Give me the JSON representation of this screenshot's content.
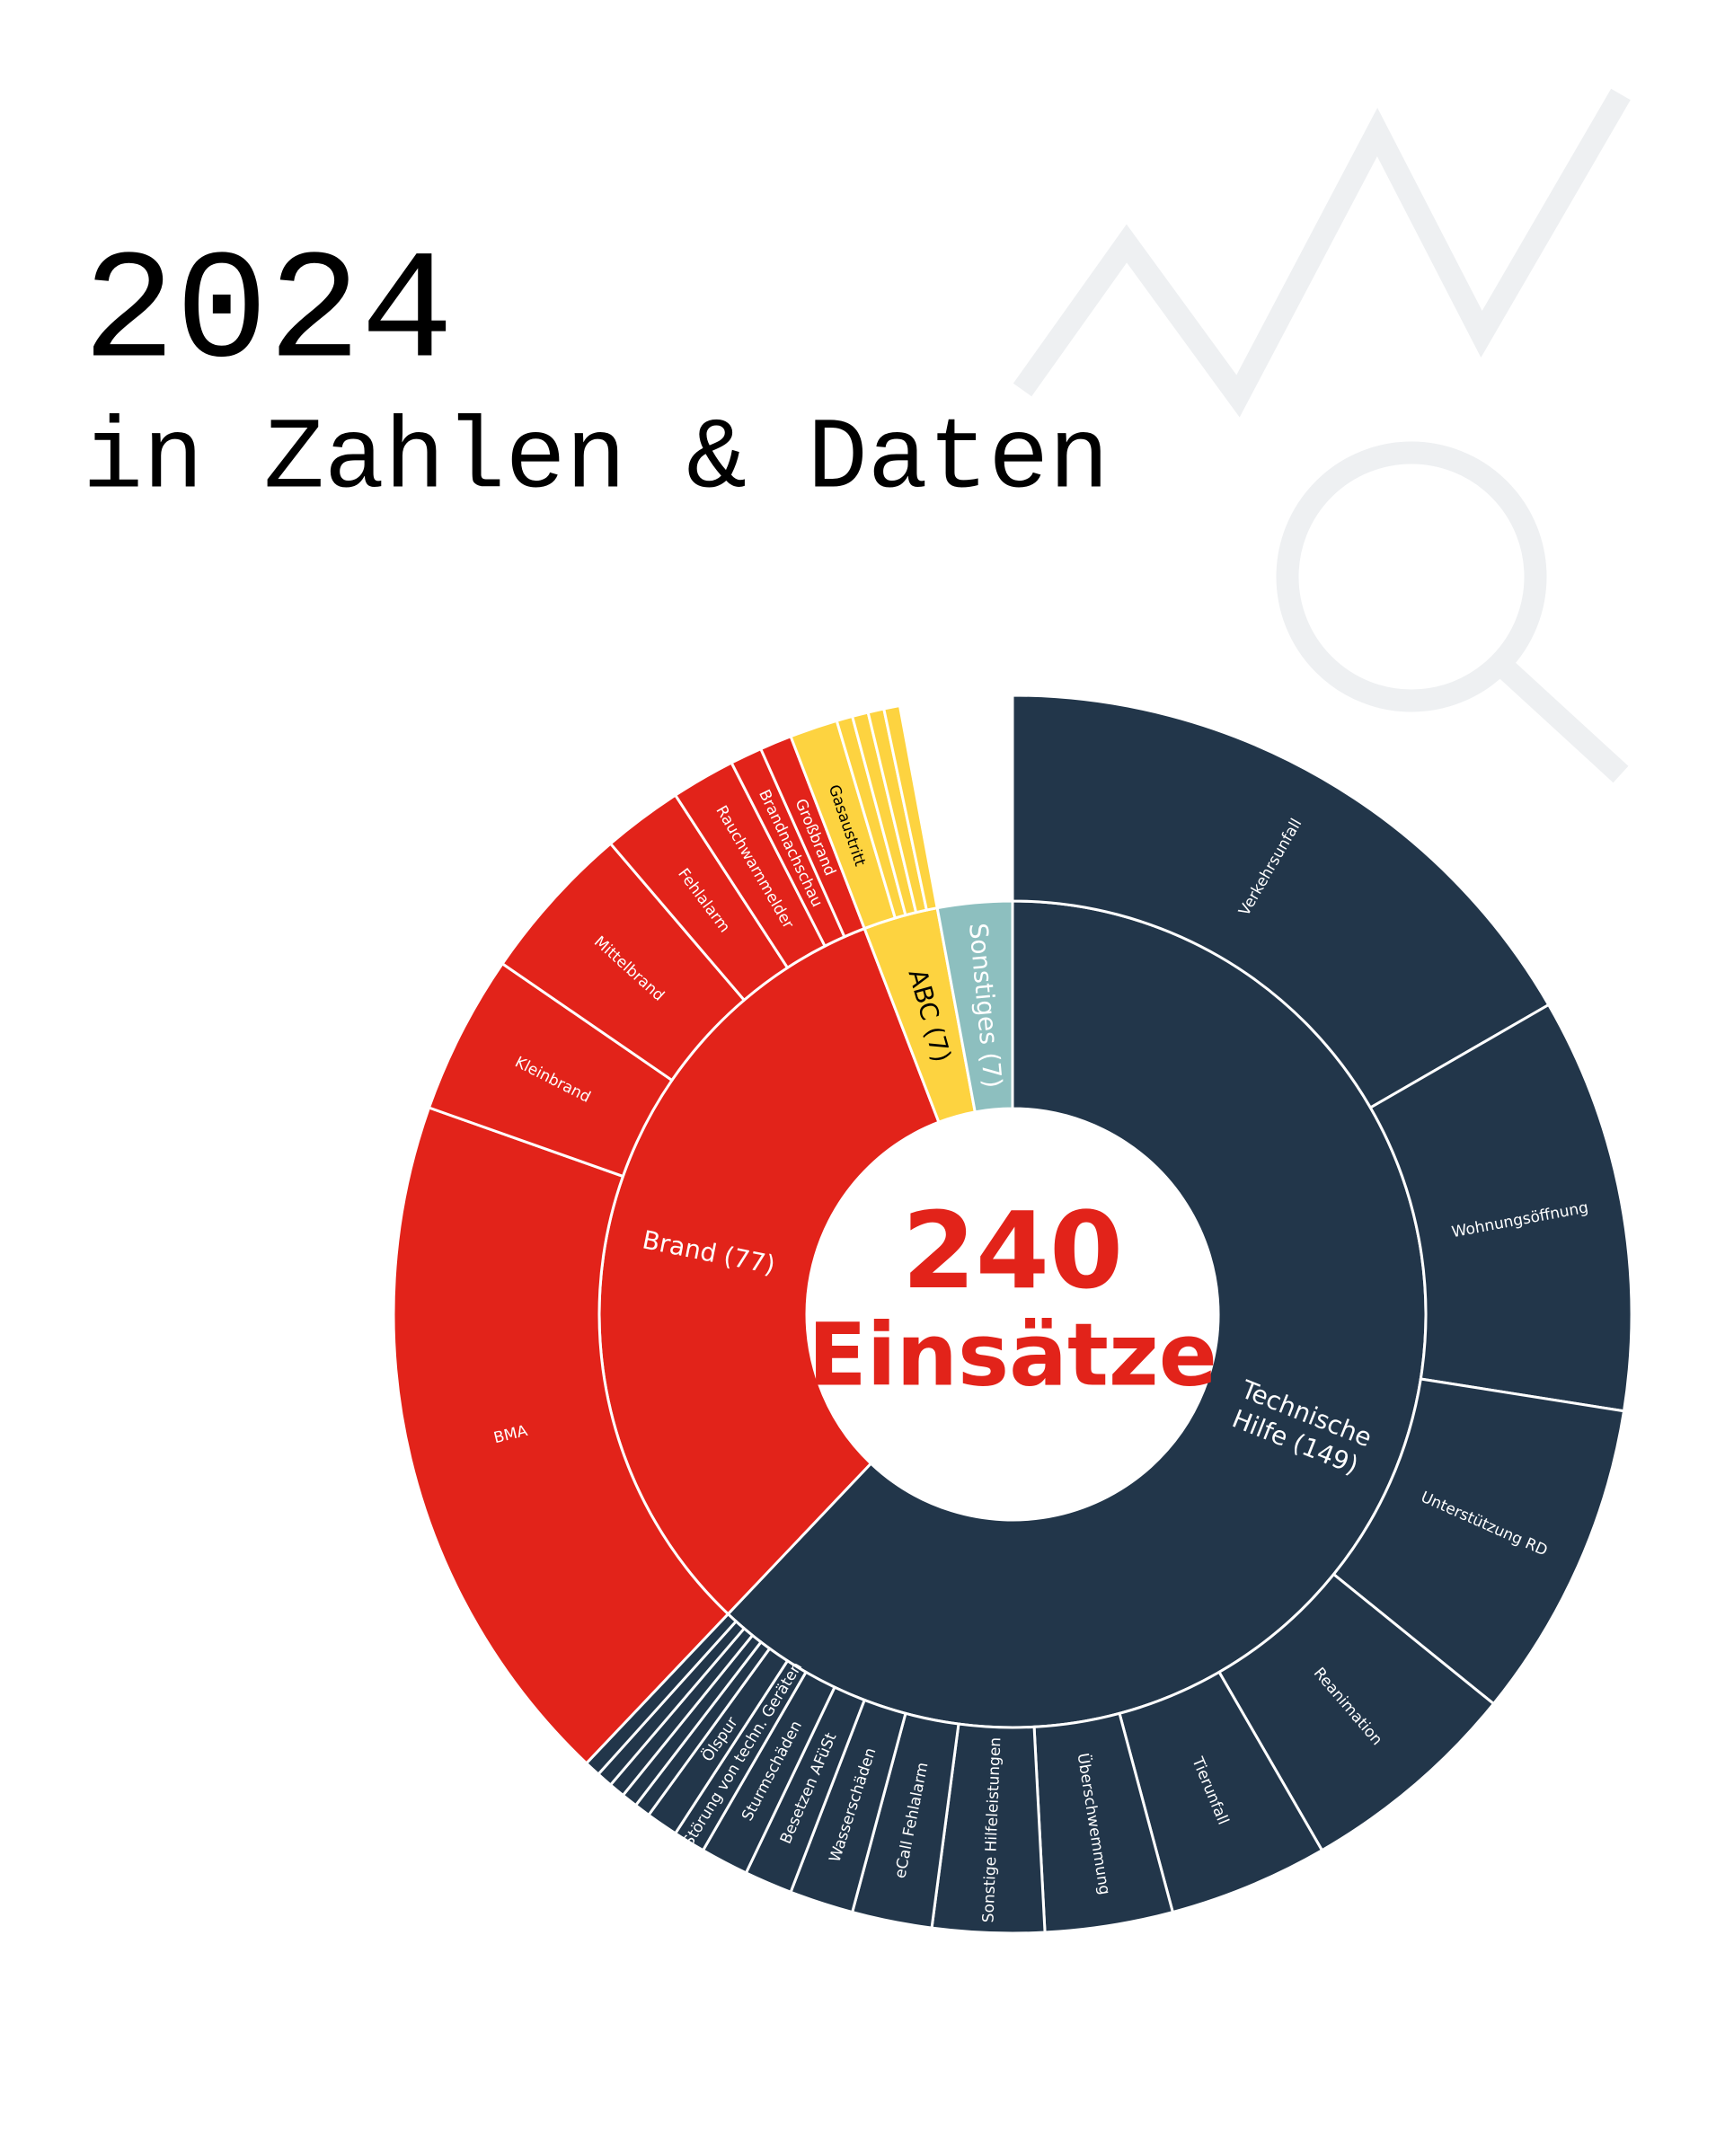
{
  "chart_data": {
    "type": "sunburst",
    "title": "2024",
    "subtitle": "in Zahlen & Daten",
    "total": 240,
    "total_label": "Einsätze",
    "center_color": "#e2231a",
    "groups": [
      {
        "label_lines": [
          "Technische",
          "Hilfe (149)"
        ],
        "value": 149,
        "color": "#22364a",
        "label_color": "#ffffff",
        "children": [
          {
            "name": "Verkehrsunfall",
            "value": 40
          },
          {
            "name": "Wohnungsöffnung",
            "value": 26
          },
          {
            "name": "Unterstützung RD",
            "value": 20
          },
          {
            "name": "Reanimation",
            "value": 14
          },
          {
            "name": "Tierunfall",
            "value": 10
          },
          {
            "name": "Überschwemmung",
            "value": 8
          },
          {
            "name": "Sonstige Hilfeleistungen",
            "value": 7
          },
          {
            "name": "eCall Fehlalarm",
            "value": 5
          },
          {
            "name": "Wasserschäden",
            "value": 4
          },
          {
            "name": "Besetzen AFüSt",
            "value": 3
          },
          {
            "name": "Sturmschäden",
            "value": 3
          },
          {
            "name": "Störung von techn. Geräten",
            "value": 2
          },
          {
            "name": "Ölspur",
            "value": 2
          },
          {
            "name": null,
            "value": 1
          },
          {
            "name": null,
            "value": 1
          },
          {
            "name": null,
            "value": 1
          },
          {
            "name": null,
            "value": 1
          },
          {
            "name": null,
            "value": 1
          }
        ]
      },
      {
        "label_lines": [
          "Brand (77)"
        ],
        "value": 77,
        "color": "#e2231a",
        "label_color": "#ffffff",
        "children": [
          {
            "name": "BMA",
            "value": 44
          },
          {
            "name": "Kleinbrand",
            "value": 10
          },
          {
            "name": "Mittelbrand",
            "value": 10
          },
          {
            "name": "Fehlalarm",
            "value": 5
          },
          {
            "name": "Rauchwarnmelder",
            "value": 4
          },
          {
            "name": "Brandnachschau",
            "value": 2
          },
          {
            "name": "Großbrand",
            "value": 2
          }
        ]
      },
      {
        "label_lines": [
          "ABC (7)"
        ],
        "value": 7,
        "color": "#fdd340",
        "label_color": "#000000",
        "children": [
          {
            "name": "Gasaustritt",
            "value": 3
          },
          {
            "name": null,
            "value": 1
          },
          {
            "name": null,
            "value": 1
          },
          {
            "name": null,
            "value": 1
          },
          {
            "name": null,
            "value": 1
          }
        ]
      },
      {
        "label_lines": [
          "Sonstiges (7)"
        ],
        "value": 7,
        "color": "#8dbfbf",
        "label_color": "#ffffff",
        "children": []
      }
    ]
  }
}
